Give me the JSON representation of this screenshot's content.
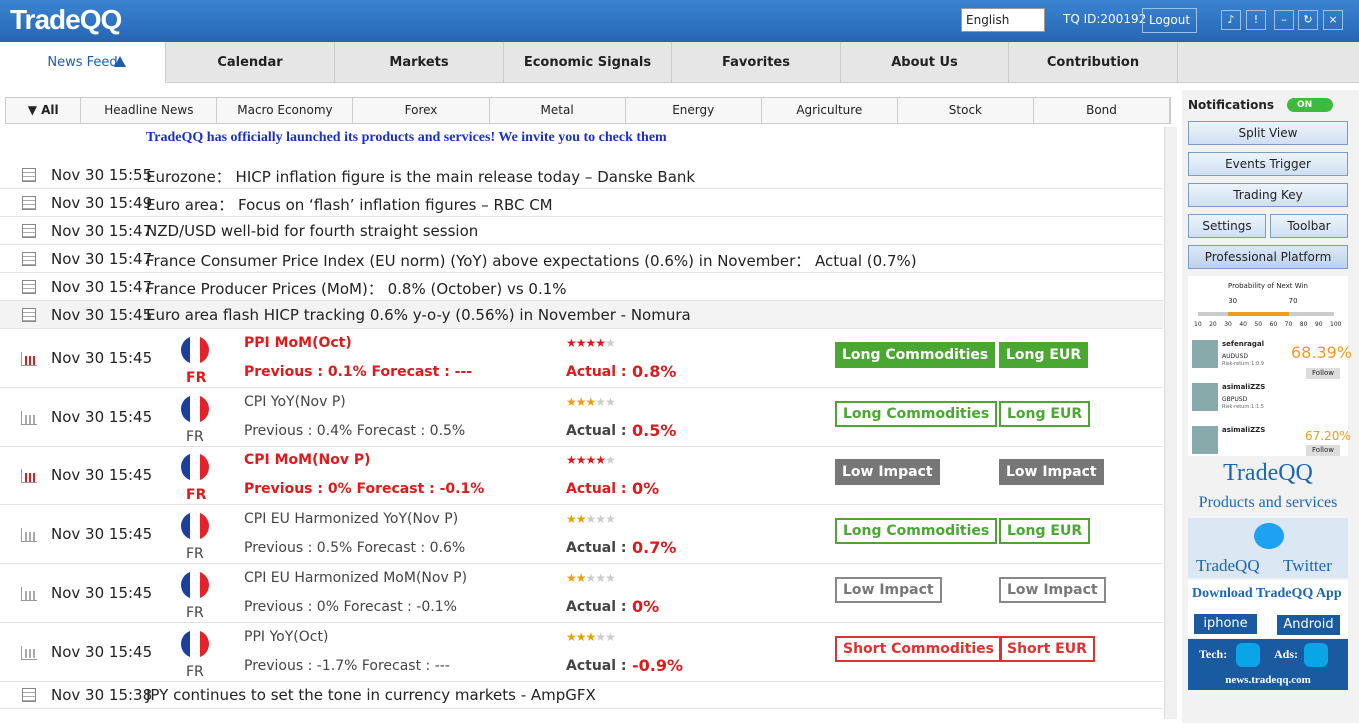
{
  "header": {
    "logo": "TradeQQ",
    "language": "English",
    "tq_id": "TQ ID:200192",
    "logout": "Logout"
  },
  "nav": [
    "News Feed",
    "Calendar",
    "Markets",
    "Economic Signals",
    "Favorites",
    "About Us",
    "Contribution"
  ],
  "filters": [
    "All",
    "Headline News",
    "Macro Economy",
    "Forex",
    "Metal",
    "Energy",
    "Agriculture",
    "Stock",
    "Bond"
  ],
  "announcement": "TradeQQ has officially launched its products and services! We invite you to check them",
  "news": [
    {
      "time": "Nov 30 15:55",
      "text": "Eurozone： HICP inflation figure is the main release today – Danske Bank"
    },
    {
      "time": "Nov 30 15:49",
      "text": "Euro area： Focus on ‘flash’ inflation figures – RBC CM"
    },
    {
      "time": "Nov 30 15:47",
      "text": "NZD/USD well-bid for fourth straight session"
    },
    {
      "time": "Nov 30 15:47",
      "text": "France Consumer Price Index (EU norm) (YoY) above expectations (0.6%) in November： Actual (0.7%)"
    },
    {
      "time": "Nov 30 15:47",
      "text": "France Producer Prices (MoM)： 0.8% (October) vs 0.1%"
    },
    {
      "time": "Nov 30 15:45",
      "text": "Euro area flash HICP tracking 0.6% y-o-y (0.56%) in November - Nomura"
    }
  ],
  "events": [
    {
      "time": "Nov 30 15:45",
      "country": "FR",
      "title": "PPI MoM(Oct)",
      "detail": "Previous : 0.1% Forecast : ---",
      "actual_label": "Actual :",
      "actual": "0.8%",
      "stars": 4,
      "high": true,
      "signals": [
        {
          "label": "Long Commodities",
          "kind": "solid-green"
        },
        {
          "label": "Long EUR",
          "kind": "solid-green"
        }
      ]
    },
    {
      "time": "Nov 30 15:45",
      "country": "FR",
      "title": "CPI YoY(Nov P)",
      "detail": "Previous : 0.4% Forecast : 0.5%",
      "actual_label": "Actual :",
      "actual": "0.5%",
      "stars": 3,
      "high": false,
      "signals": [
        {
          "label": "Long Commodities",
          "kind": "outline-green"
        },
        {
          "label": "Long EUR",
          "kind": "outline-green"
        }
      ]
    },
    {
      "time": "Nov 30 15:45",
      "country": "FR",
      "title": "CPI MoM(Nov P)",
      "detail": "Previous : 0% Forecast : -0.1%",
      "actual_label": "Actual :",
      "actual": "0%",
      "stars": 4,
      "high": true,
      "signals": [
        {
          "label": "Low Impact",
          "kind": "solid-gray"
        },
        {
          "label": "Low Impact",
          "kind": "solid-gray"
        }
      ]
    },
    {
      "time": "Nov 30 15:45",
      "country": "FR",
      "title": "CPI EU Harmonized YoY(Nov P)",
      "detail": "Previous : 0.5% Forecast : 0.6%",
      "actual_label": "Actual :",
      "actual": "0.7%",
      "stars": 2,
      "high": false,
      "signals": [
        {
          "label": "Long Commodities",
          "kind": "outline-green"
        },
        {
          "label": "Long EUR",
          "kind": "outline-green"
        }
      ]
    },
    {
      "time": "Nov 30 15:45",
      "country": "FR",
      "title": "CPI EU Harmonized MoM(Nov P)",
      "detail": "Previous : 0% Forecast : -0.1%",
      "actual_label": "Actual :",
      "actual": "0%",
      "stars": 2,
      "high": false,
      "signals": [
        {
          "label": "Low Impact",
          "kind": "outline-gray"
        },
        {
          "label": "Low Impact",
          "kind": "outline-gray"
        }
      ]
    },
    {
      "time": "Nov 30 15:45",
      "country": "FR",
      "title": "PPI YoY(Oct)",
      "detail": "Previous : -1.7% Forecast : ---",
      "actual_label": "Actual :",
      "actual": "-0.9%",
      "stars": 3,
      "high": false,
      "signals": [
        {
          "label": "Short Commodities",
          "kind": "outline-red"
        },
        {
          "label": "Short EUR",
          "kind": "outline-red"
        }
      ]
    }
  ],
  "last_news": {
    "time": "Nov 30 15:38",
    "text": "JPY continues to set the tone in currency markets - AmpGFX"
  },
  "sidebar": {
    "notifications": "Notifications",
    "toggle": "ON",
    "buttons": [
      "Split View",
      "Events Trigger",
      "Trading Key"
    ],
    "half_buttons": [
      "Settings",
      "Toolbar"
    ],
    "platform": "Professional Platform",
    "widget": {
      "title": "Probability of Next Win",
      "markers": [
        30,
        70
      ],
      "scale": [
        10,
        20,
        30,
        40,
        50,
        60,
        70,
        80,
        90,
        100
      ],
      "traders": [
        {
          "name": "sefenragal",
          "pair": "AUDUSD",
          "risk": "Risk-return:1:0.9",
          "rate": "68.39%",
          "follow": "Follow"
        },
        {
          "name": "asimaliZZS",
          "pair": "GBPUSD",
          "risk": "Risk-return:1:1.5"
        },
        {
          "name": "asimaliZZS",
          "rate": "67.20%",
          "follow": "Follow"
        }
      ]
    },
    "ad1": {
      "title": "TradeQQ",
      "subtitle": "Products and services"
    },
    "ad2": {
      "left": "TradeQQ",
      "right": "Twitter"
    },
    "ad3": {
      "title": "Download TradeQQ App",
      "iphone": "iphone",
      "android": "Android"
    },
    "ad4": {
      "tech": "Tech:",
      "ads": "Ads:",
      "url": "news.tradeqq.com"
    }
  }
}
